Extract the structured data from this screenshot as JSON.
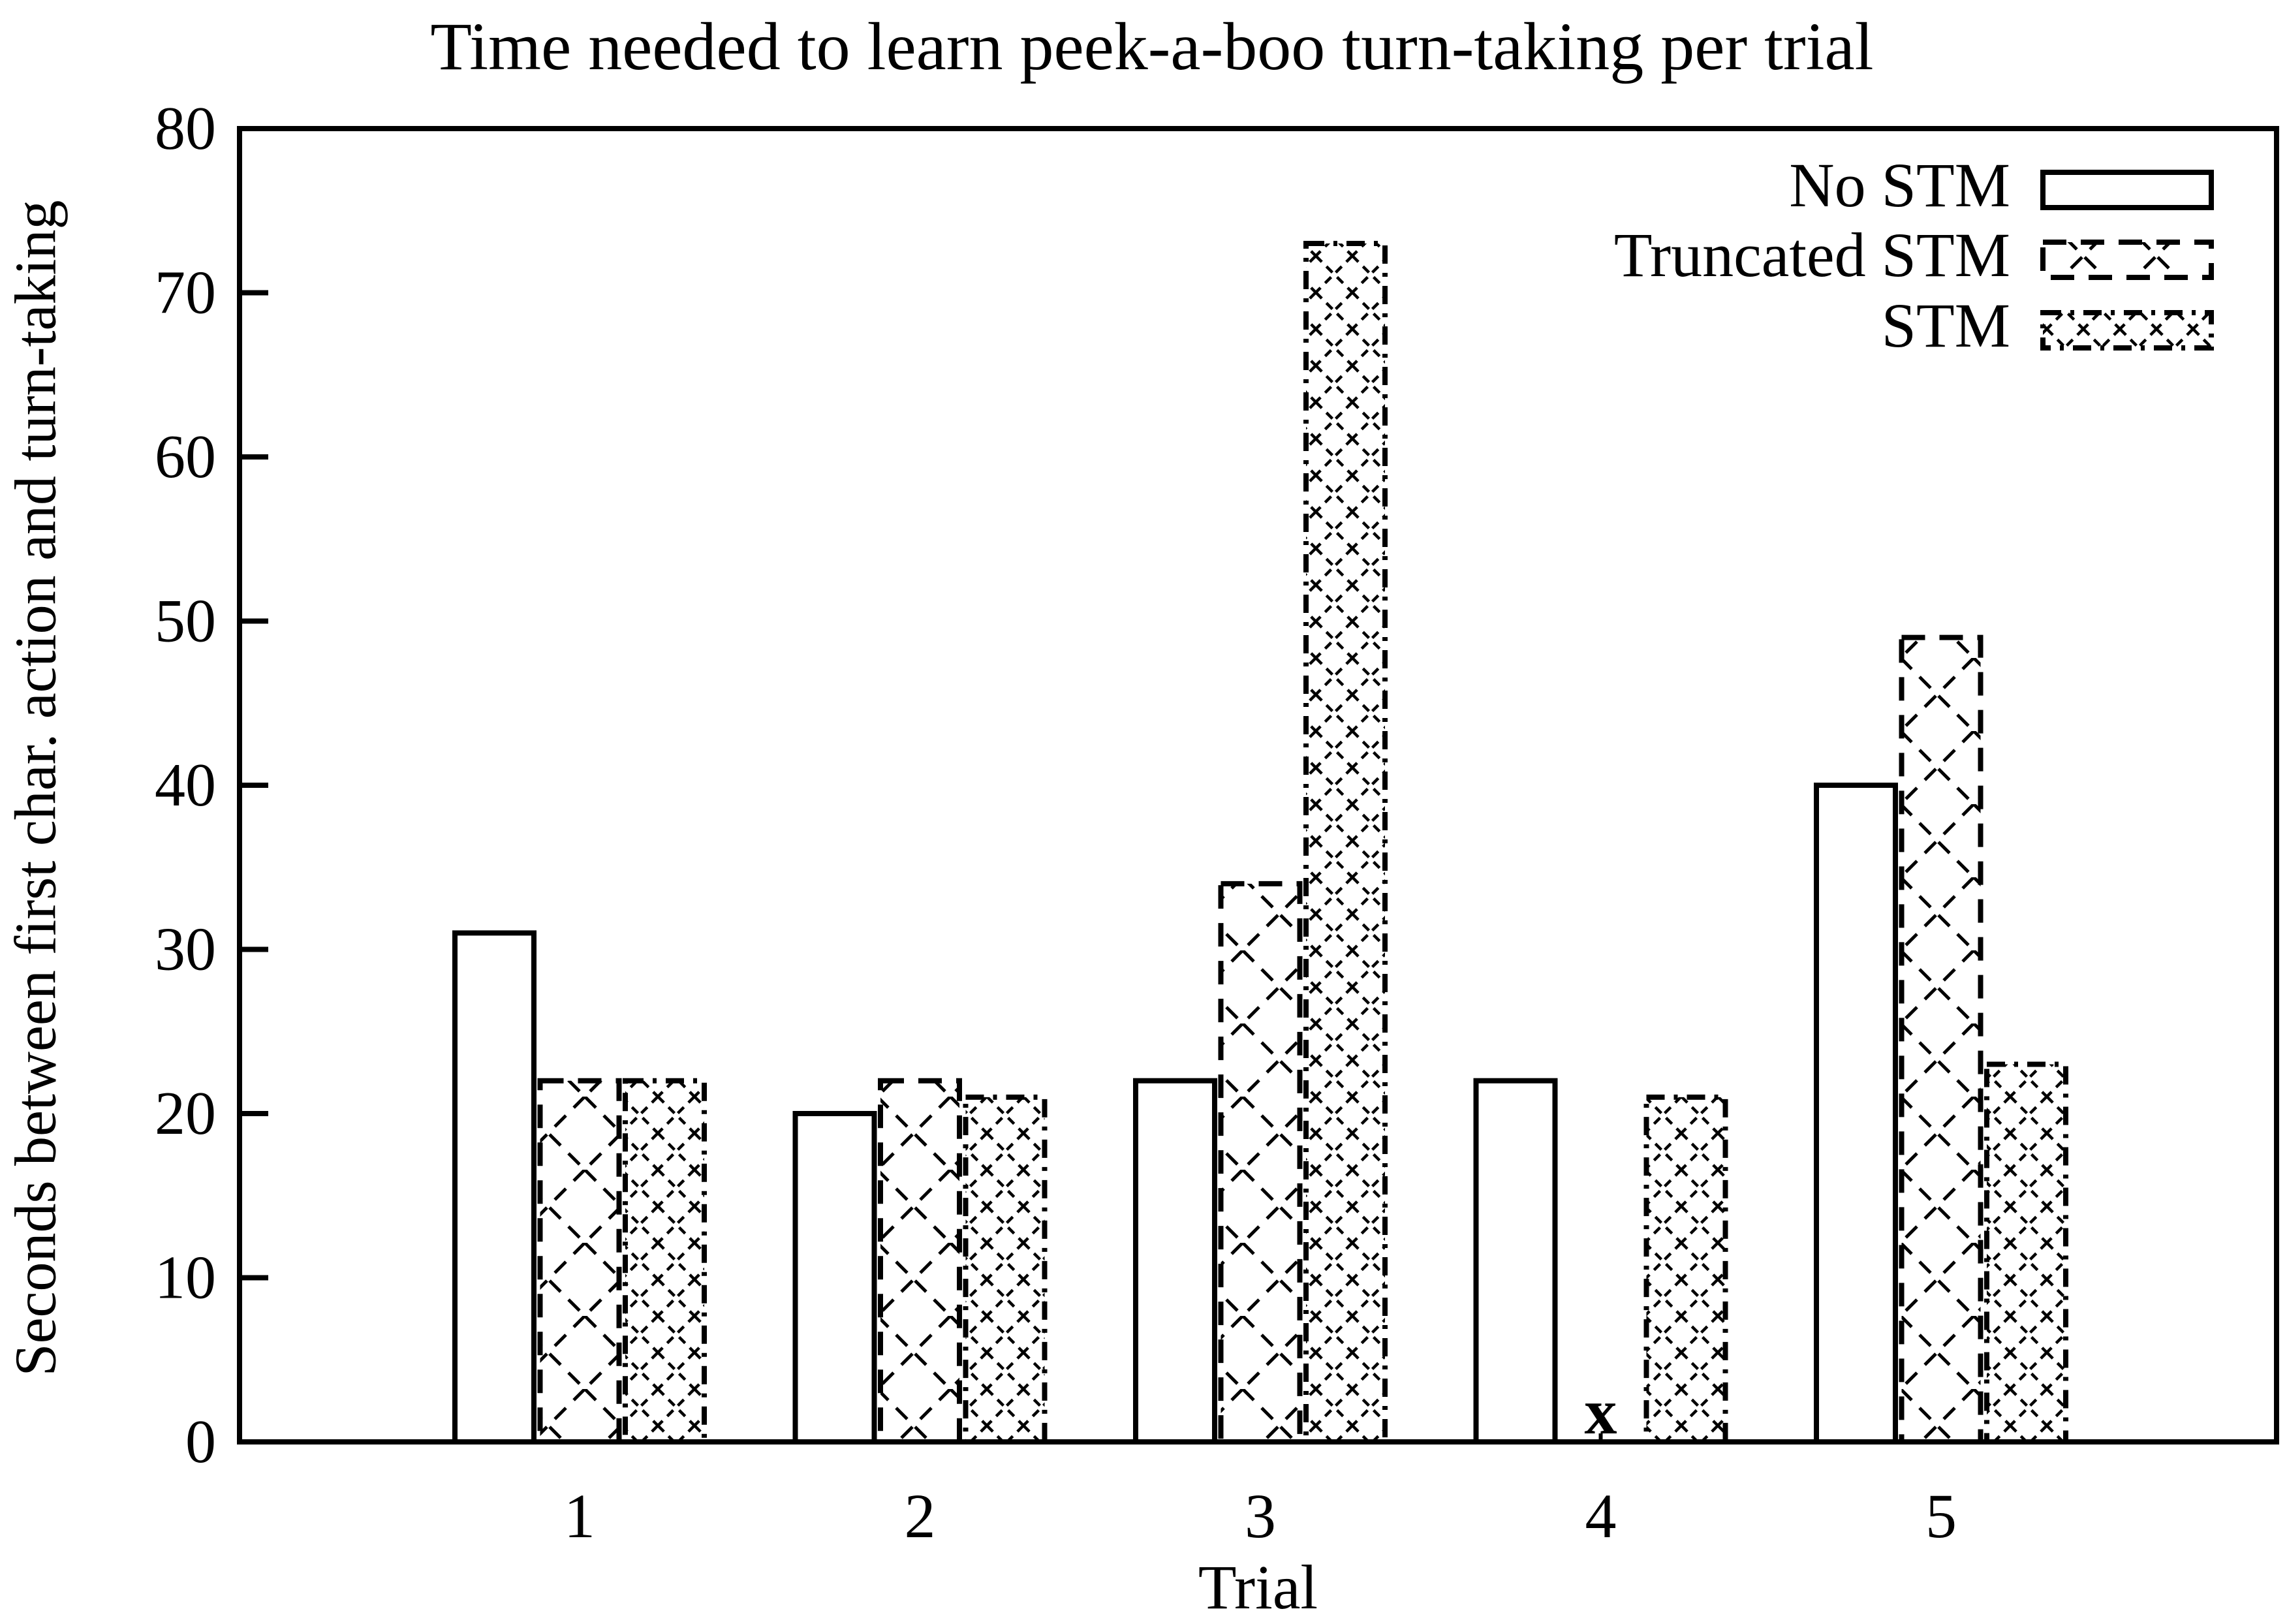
{
  "chart_data": {
    "type": "bar",
    "title": "Time needed to learn peek-a-boo turn-taking per trial",
    "xlabel": "Trial",
    "ylabel": "Seconds between first char. action and turn-taking",
    "categories": [
      "1",
      "2",
      "3",
      "4",
      "5"
    ],
    "series": [
      {
        "name": "No STM",
        "pattern": "plain",
        "values": [
          31,
          20,
          22,
          22,
          40
        ]
      },
      {
        "name": "Truncated STM",
        "pattern": "sparse-crosshatch",
        "values": [
          22,
          22,
          34,
          null,
          49
        ]
      },
      {
        "name": "STM",
        "pattern": "dense-crosshatch",
        "values": [
          22,
          21,
          73,
          21,
          23
        ]
      }
    ],
    "missing_point": {
      "series": "Truncated STM",
      "category": "4",
      "symbol": "x",
      "approx_value": 2
    },
    "ylim": [
      0,
      80
    ],
    "yticks": [
      0,
      10,
      20,
      30,
      40,
      50,
      60,
      70,
      80
    ],
    "grid": false,
    "legend_position": "top-right",
    "colors": {
      "foreground": "#000000",
      "background": "#ffffff"
    }
  }
}
